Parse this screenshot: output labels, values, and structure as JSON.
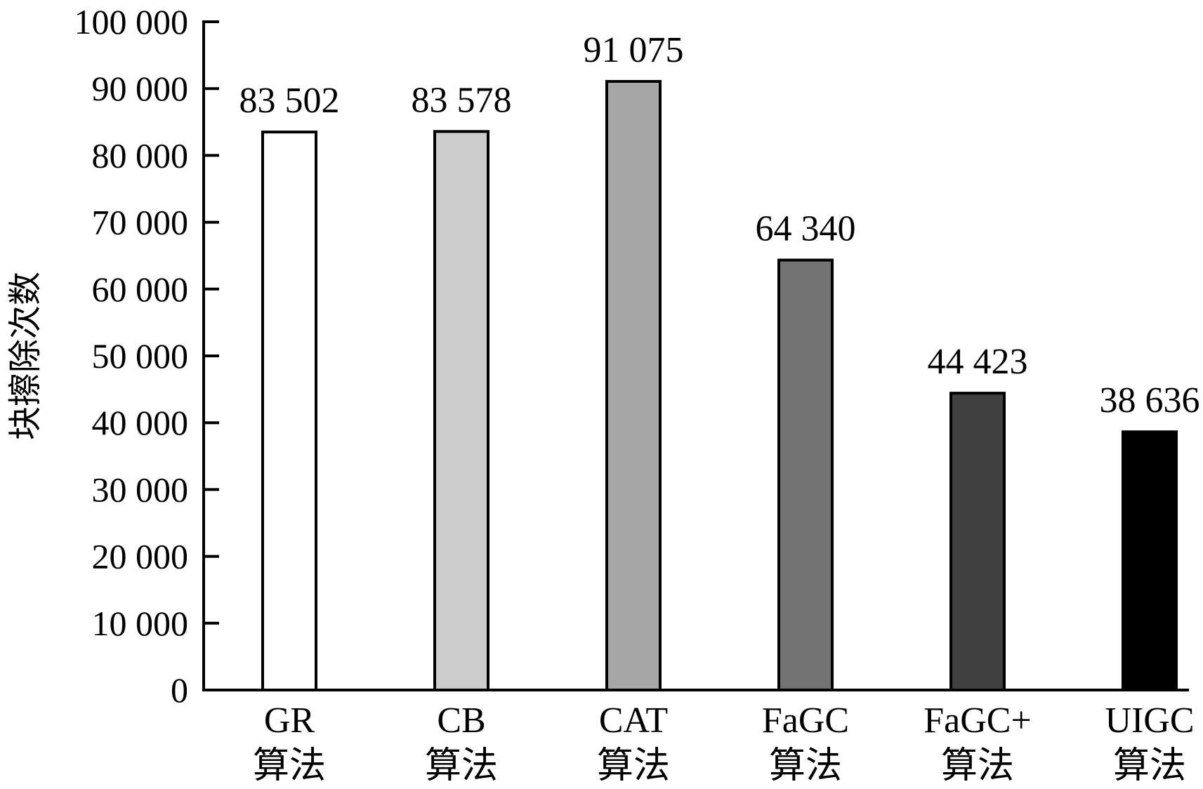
{
  "chart_data": {
    "type": "bar",
    "categories": [
      [
        "GR",
        "算法"
      ],
      [
        "CB",
        "算法"
      ],
      [
        "CAT",
        "算法"
      ],
      [
        "FaGC",
        "算法"
      ],
      [
        "FaGC+",
        "算法"
      ],
      [
        "UIGC",
        "算法"
      ]
    ],
    "values": [
      83502,
      83578,
      91075,
      64340,
      44423,
      38636
    ],
    "value_labels": [
      "83 502",
      "83 578",
      "91 075",
      "64 340",
      "44 423",
      "38 636"
    ],
    "bar_colors": [
      "#ffffff",
      "#cccccc",
      "#a6a6a6",
      "#737373",
      "#404040",
      "#000000"
    ],
    "ylabel": "块擦除次数",
    "xlabel": "",
    "ylim": [
      0,
      100000
    ],
    "yticks": [
      0,
      10000,
      20000,
      30000,
      40000,
      50000,
      60000,
      70000,
      80000,
      90000,
      100000
    ],
    "ytick_labels": [
      "0",
      "10 000",
      "20 000",
      "30 000",
      "40 000",
      "50 000",
      "60 000",
      "70 000",
      "80 000",
      "90 000",
      "100 000"
    ],
    "grid": false,
    "legend": "none"
  }
}
